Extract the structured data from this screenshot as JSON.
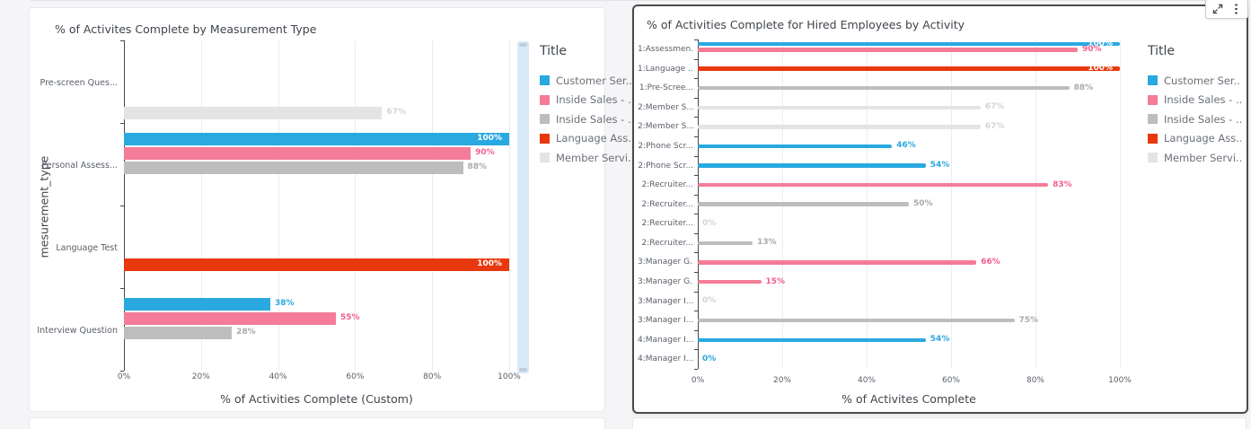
{
  "window": {
    "background": "#F5F5F7"
  },
  "palette": {
    "blue": "#29A9E0",
    "pink": "#F47C98",
    "gray": "#BDBDBD",
    "light_gray": "#E4E4E4",
    "red": "#E8380D"
  },
  "label_colors": {
    "blue": "#2BA7DF",
    "pink": "#F2608E",
    "gray": "#ABABAB",
    "light_gray": "#D4D4D4",
    "red": "#E8380D"
  },
  "toolbar": {
    "buttons": [
      "expand",
      "more-options"
    ]
  },
  "chart_data": [
    {
      "type": "bar",
      "orientation": "horizontal",
      "title": "% of Activites Complete by Measurement Type",
      "xlabel": "% of Activities Complete (Custom)",
      "ylabel": "mesurement_type",
      "xlim": [
        0,
        100
      ],
      "xtick_values": [
        0,
        20,
        40,
        60,
        80,
        100
      ],
      "xtick_labels": [
        "0%",
        "20%",
        "40%",
        "60%",
        "80%",
        "100%"
      ],
      "grid": true,
      "legend_position": "right",
      "legend_title": "Title",
      "legend": [
        {
          "label": "Customer Ser...",
          "color": "blue"
        },
        {
          "label": "Inside Sales - ...",
          "color": "pink"
        },
        {
          "label": "Inside Sales - ...",
          "color": "gray"
        },
        {
          "label": "Language Ass...",
          "color": "red"
        },
        {
          "label": "Member Servi...",
          "color": "light_gray"
        }
      ],
      "categories": [
        "Pre-screen Ques...",
        "Personal Assess...",
        "Language Test",
        "Interview Question"
      ],
      "bars": [
        {
          "category": 0,
          "slot": 4,
          "series": "Member Servi...",
          "color": "light_gray",
          "value": 67,
          "label": "67%",
          "label_style": "outside"
        },
        {
          "category": 1,
          "slot": 0,
          "series": "Customer Ser...",
          "color": "blue",
          "value": 100,
          "label": "100%",
          "label_style": "inside"
        },
        {
          "category": 1,
          "slot": 1,
          "series": "Inside Sales - ...",
          "color": "pink",
          "value": 90,
          "label": "90%",
          "label_style": "outside"
        },
        {
          "category": 1,
          "slot": 2,
          "series": "Inside Sales - ...",
          "color": "gray",
          "value": 88,
          "label": "88%",
          "label_style": "outside"
        },
        {
          "category": 2,
          "slot": 3,
          "series": "Language Ass...",
          "color": "red",
          "value": 100,
          "label": "100%",
          "label_style": "inside"
        },
        {
          "category": 3,
          "slot": 0,
          "series": "Customer Ser...",
          "color": "blue",
          "value": 38,
          "label": "38%",
          "label_style": "outside"
        },
        {
          "category": 3,
          "slot": 1,
          "series": "Inside Sales - ...",
          "color": "pink",
          "value": 55,
          "label": "55%",
          "label_style": "outside"
        },
        {
          "category": 3,
          "slot": 2,
          "series": "Inside Sales - ...",
          "color": "gray",
          "value": 28,
          "label": "28%",
          "label_style": "outside"
        }
      ],
      "scrollbar": true
    },
    {
      "type": "bar",
      "orientation": "horizontal",
      "title": "% of Activities Complete for Hired Employees by Activity",
      "xlabel": "% of Activites Complete",
      "ylabel": "",
      "xlim": [
        0,
        100
      ],
      "xtick_values": [
        0,
        20,
        40,
        60,
        80,
        100
      ],
      "xtick_labels": [
        "0%",
        "20%",
        "40%",
        "60%",
        "80%",
        "100%"
      ],
      "grid": true,
      "legend_position": "right",
      "legend_title": "Title",
      "legend": [
        {
          "label": "Customer Ser...",
          "color": "blue"
        },
        {
          "label": "Inside Sales - ...",
          "color": "pink"
        },
        {
          "label": "Inside Sales - ...",
          "color": "gray"
        },
        {
          "label": "Language Ass...",
          "color": "red"
        },
        {
          "label": "Member Servi...",
          "color": "light_gray"
        }
      ],
      "categories": [
        "1:Assessmen...",
        "1:Language ...",
        "1:Pre-Scree...",
        "2:Member S...",
        "2:Member S...",
        "2:Phone Scr...",
        "2:Phone Scr...",
        "2:Recruiter...",
        "2:Recruiter...",
        "2:Recruiter...",
        "2:Recruiter...",
        "3:Manager G...",
        "3:Manager G...",
        "3:Manager I...",
        "3:Manager I...",
        "4:Manager I...",
        "4:Manager I..."
      ],
      "bars": [
        {
          "category": 0,
          "sub": 0,
          "series": "Customer Ser...",
          "color": "blue",
          "value": 100,
          "label": "100%",
          "label_style": "inside"
        },
        {
          "category": 0,
          "sub": 1,
          "series": "Inside Sales - ...",
          "color": "pink",
          "value": 90,
          "label": "90%",
          "label_style": "outside"
        },
        {
          "category": 1,
          "series": "Language Ass...",
          "color": "red",
          "value": 100,
          "label": "100%",
          "label_style": "inside"
        },
        {
          "category": 2,
          "series": "Inside Sales - ...",
          "color": "gray",
          "value": 88,
          "label": "88%",
          "label_style": "outside"
        },
        {
          "category": 3,
          "series": "Member Servi...",
          "color": "light_gray",
          "value": 67,
          "label": "67%",
          "label_style": "outside"
        },
        {
          "category": 4,
          "series": "Member Servi...",
          "color": "light_gray",
          "value": 67,
          "label": "67%",
          "label_style": "outside"
        },
        {
          "category": 5,
          "series": "Customer Ser...",
          "color": "blue",
          "value": 46,
          "label": "46%",
          "label_style": "outside"
        },
        {
          "category": 6,
          "series": "Customer Ser...",
          "color": "blue",
          "value": 54,
          "label": "54%",
          "label_style": "outside"
        },
        {
          "category": 7,
          "series": "Inside Sales - ...",
          "color": "pink",
          "value": 83,
          "label": "83%",
          "label_style": "outside"
        },
        {
          "category": 8,
          "series": "Inside Sales - ...",
          "color": "gray",
          "value": 50,
          "label": "50%",
          "label_style": "outside"
        },
        {
          "category": 9,
          "series": "Member Servi...",
          "color": "light_gray",
          "value": 0,
          "label": "0%",
          "label_style": "outside"
        },
        {
          "category": 10,
          "series": "Inside Sales - ...",
          "color": "gray",
          "value": 13,
          "label": "13%",
          "label_style": "outside"
        },
        {
          "category": 11,
          "series": "Inside Sales - ...",
          "color": "pink",
          "value": 66,
          "label": "66%",
          "label_style": "outside"
        },
        {
          "category": 12,
          "series": "Inside Sales - ...",
          "color": "pink",
          "value": 15,
          "label": "15%",
          "label_style": "outside"
        },
        {
          "category": 13,
          "series": "Member Servi...",
          "color": "light_gray",
          "value": 0,
          "label": "0%",
          "label_style": "outside"
        },
        {
          "category": 14,
          "series": "Inside Sales - ...",
          "color": "gray",
          "value": 75,
          "label": "75%",
          "label_style": "outside"
        },
        {
          "category": 15,
          "series": "Customer Ser...",
          "color": "blue",
          "value": 54,
          "label": "54%",
          "label_style": "outside"
        },
        {
          "category": 16,
          "series": "Customer Ser...",
          "color": "blue",
          "value": 0,
          "label": "0%",
          "label_style": "outside"
        }
      ]
    }
  ]
}
